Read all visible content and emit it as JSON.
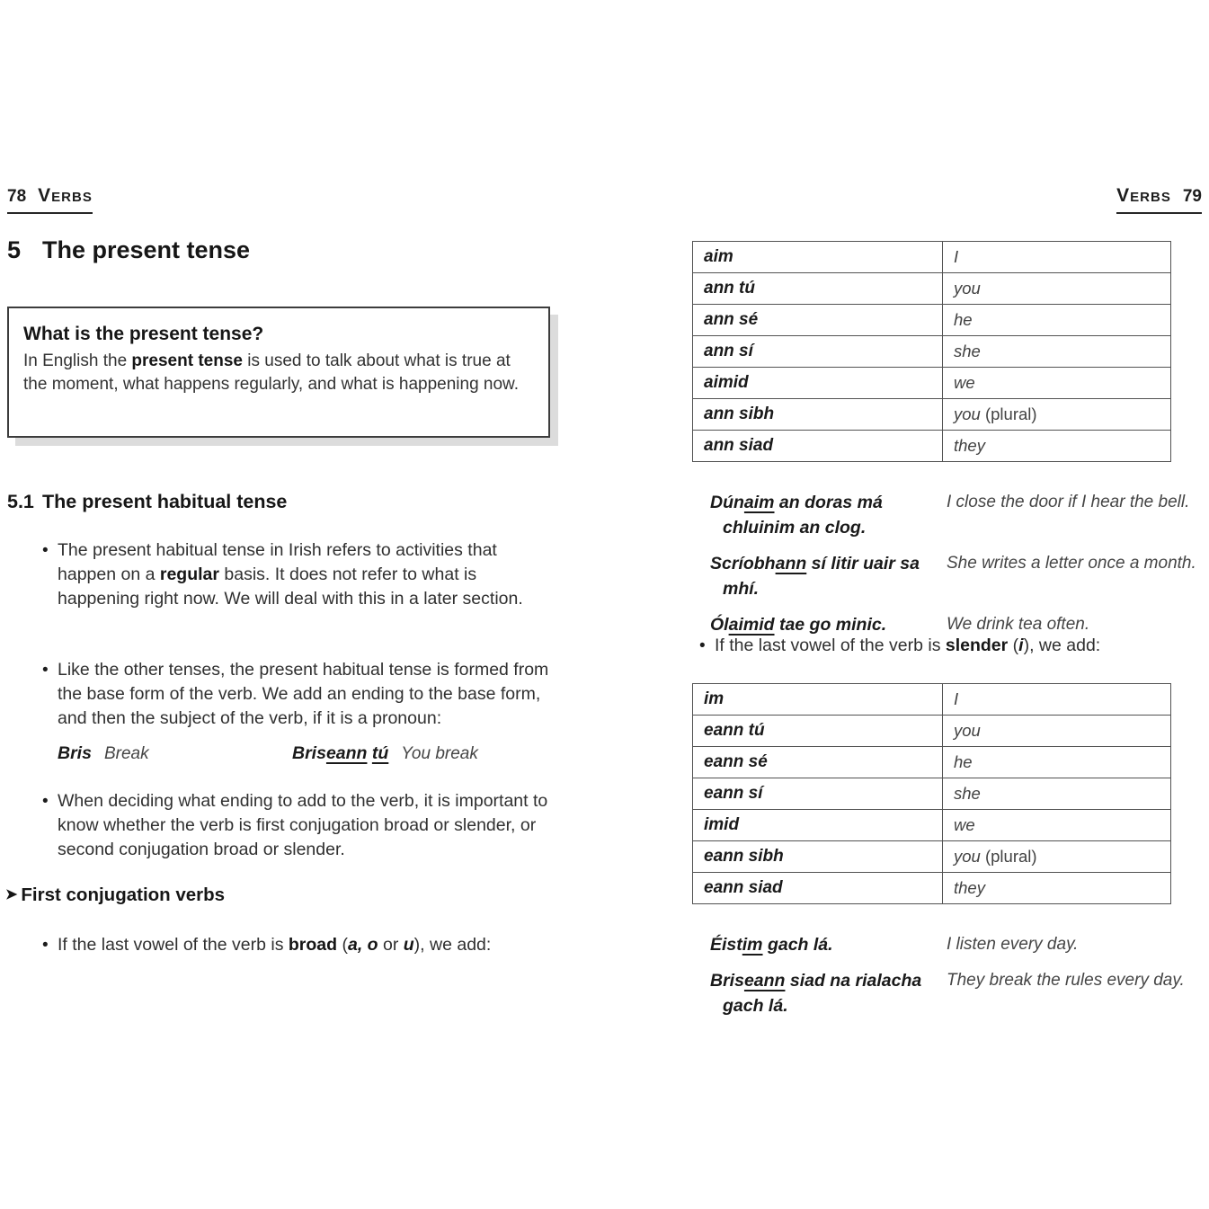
{
  "header_left": {
    "page_number": "78",
    "label": "Verbs"
  },
  "header_right": {
    "label": "Verbs",
    "page_number": "79"
  },
  "section": {
    "number": "5",
    "title": "The present tense"
  },
  "infobox": {
    "title": "What is the present tense?",
    "body": [
      {
        "t": "In English the "
      },
      {
        "t": "present tense",
        "b": 1
      },
      {
        "t": " is used to talk about what is true at the moment, what happens regularly, and what is happening now."
      }
    ]
  },
  "subsection": {
    "number": "5.1",
    "title": "The present habitual tense"
  },
  "bullets": {
    "habitual": [
      {
        "t": "The present habitual tense in Irish refers to activities that happen on a "
      },
      {
        "t": "regular",
        "b": 1
      },
      {
        "t": " basis. It does not refer to what is happening right now. We will deal with this in a later section."
      }
    ],
    "like_other": [
      {
        "t": "Like the other tenses, the present habitual tense is formed from the base form of the verb. We add an ending to the base form, and then the subject of the verb, if it is a pronoun:"
      }
    ],
    "deciding": [
      {
        "t": "When deciding what ending to add to the verb, it is important to know whether the verb is first conjugation broad or slender, or second conjugation broad or slender."
      }
    ],
    "broad": [
      {
        "t": "If the last vowel of the verb is "
      },
      {
        "t": "broad",
        "b": 1
      },
      {
        "t": " ("
      },
      {
        "t": "a, o",
        "b": 1,
        "i": 1
      },
      {
        "t": " or "
      },
      {
        "t": "u",
        "b": 1,
        "i": 1
      },
      {
        "t": "), we add:"
      }
    ],
    "slender": [
      {
        "t": "If the last vowel of the verb is "
      },
      {
        "t": "slender",
        "b": 1
      },
      {
        "t": " ("
      },
      {
        "t": "i",
        "b": 1,
        "i": 1
      },
      {
        "t": "), we add:"
      }
    ]
  },
  "inline_example": {
    "base_irish": "Bris",
    "base_english": "Break",
    "conj_irish": [
      {
        "t": "Bris"
      },
      {
        "t": "eann",
        "u": 1
      },
      {
        "t": " "
      },
      {
        "t": "tú",
        "u": 1
      }
    ],
    "conj_english": "You break"
  },
  "first_conjugation": {
    "arrow": "➤",
    "title": "First conjugation verbs"
  },
  "broad_table": {
    "rows": [
      {
        "ending": "aim",
        "pronoun": [
          {
            "t": "I"
          }
        ]
      },
      {
        "ending": "ann tú",
        "pronoun": [
          {
            "t": "you"
          }
        ]
      },
      {
        "ending": "ann sé",
        "pronoun": [
          {
            "t": "he"
          }
        ]
      },
      {
        "ending": "ann sí",
        "pronoun": [
          {
            "t": "she"
          }
        ]
      },
      {
        "ending": "aimid",
        "pronoun": [
          {
            "t": "we"
          }
        ]
      },
      {
        "ending": "ann sibh",
        "pronoun": [
          {
            "t": "you"
          },
          {
            "t": " (plural)",
            "r": 1
          }
        ]
      },
      {
        "ending": "ann siad",
        "pronoun": [
          {
            "t": "they"
          }
        ]
      }
    ]
  },
  "broad_examples": [
    {
      "irish": [
        {
          "t": "Dún"
        },
        {
          "t": "aim",
          "u": 1
        },
        {
          "t": " an doras má"
        },
        {
          "br": 1
        },
        {
          "t": "chluinim an clog."
        }
      ],
      "english": "I close the door if I hear the bell."
    },
    {
      "irish": [
        {
          "t": "Scríobh"
        },
        {
          "t": "ann",
          "u": 1
        },
        {
          "t": " sí litir uair sa mhí."
        }
      ],
      "english": "She writes a letter once a month."
    },
    {
      "irish": [
        {
          "t": "Ól"
        },
        {
          "t": "aimid",
          "u": 1
        },
        {
          "t": " tae go minic."
        }
      ],
      "english": "We drink tea often."
    }
  ],
  "slender_table": {
    "rows": [
      {
        "ending": "im",
        "pronoun": [
          {
            "t": "I"
          }
        ]
      },
      {
        "ending": "eann tú",
        "pronoun": [
          {
            "t": "you"
          }
        ]
      },
      {
        "ending": "eann sé",
        "pronoun": [
          {
            "t": "he"
          }
        ]
      },
      {
        "ending": "eann sí",
        "pronoun": [
          {
            "t": "she"
          }
        ]
      },
      {
        "ending": "imid",
        "pronoun": [
          {
            "t": "we"
          }
        ]
      },
      {
        "ending": "eann sibh",
        "pronoun": [
          {
            "t": "you"
          },
          {
            "t": " (plural)",
            "r": 1
          }
        ]
      },
      {
        "ending": "eann siad",
        "pronoun": [
          {
            "t": "they"
          }
        ]
      }
    ]
  },
  "slender_examples": [
    {
      "irish": [
        {
          "t": "Éist"
        },
        {
          "t": "im",
          "u": 1
        },
        {
          "t": " gach lá."
        }
      ],
      "english": "I listen every day."
    },
    {
      "irish": [
        {
          "t": "Bris"
        },
        {
          "t": "eann",
          "u": 1
        },
        {
          "t": " siad na rialacha"
        },
        {
          "br": 1
        },
        {
          "t": "gach lá."
        }
      ],
      "english": "They break the rules every day."
    }
  ],
  "colors": {
    "text": "#2e2e2e",
    "heading": "#161616",
    "box_shadow": "#dcdcdc",
    "table_border": "#525252"
  }
}
